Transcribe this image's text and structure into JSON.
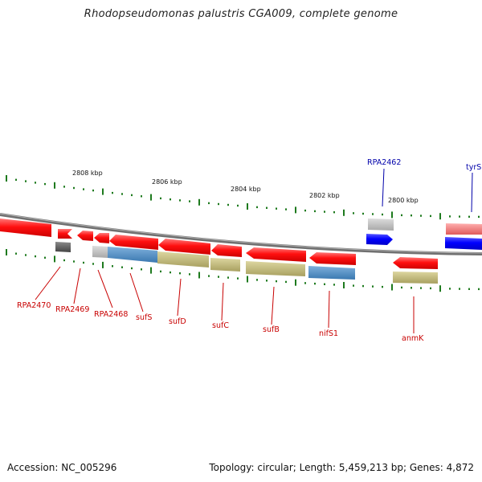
{
  "title": "Rhodopseudomonas palustris CGA009, complete genome",
  "footer": {
    "accession": "Accession: NC_005296",
    "info": "Topology: circular; Length: 5,459,213 bp; Genes: 4,872"
  },
  "scale": {
    "labels": [
      "2808 kbp",
      "2806 kbp",
      "2804 kbp",
      "2802 kbp",
      "2800 kbp"
    ]
  },
  "genes": [
    {
      "id": "g0",
      "label": "",
      "color": "#e8000b"
    },
    {
      "id": "g1",
      "label": "RPA2470",
      "color": "#e8000b"
    },
    {
      "id": "g2",
      "label": "RPA2469",
      "color": "#e8000b"
    },
    {
      "id": "g3",
      "label": "RPA2468",
      "color": "#e8000b"
    },
    {
      "id": "g4",
      "label": "sufS",
      "color": "#e8000b"
    },
    {
      "id": "g5",
      "label": "sufD",
      "color": "#e8000b"
    },
    {
      "id": "g6",
      "label": "sufC",
      "color": "#e8000b"
    },
    {
      "id": "g7",
      "label": "sufB",
      "color": "#e8000b"
    },
    {
      "id": "g8",
      "label": "nifS1",
      "color": "#e8000b"
    },
    {
      "id": "g9",
      "label": "anmK",
      "color": "#e8000b"
    },
    {
      "id": "g10",
      "label": "RPA2462",
      "color": "#0000ee"
    },
    {
      "id": "g11",
      "label": "tyrS",
      "color": "#0000ee"
    }
  ],
  "colors": {
    "backbone": "#808080",
    "tick": "#1e7a1e",
    "forward_gene": "#0000ee",
    "reverse_gene": "#e8000b",
    "cds_gray": "#b4b4b4",
    "cds_dark": "#555555",
    "cds_blue": "#4a8cc4",
    "cds_olive": "#c4bc7a",
    "cds_pink": "#f07070",
    "label_red": "#c80000",
    "label_blue": "#0000aa"
  }
}
